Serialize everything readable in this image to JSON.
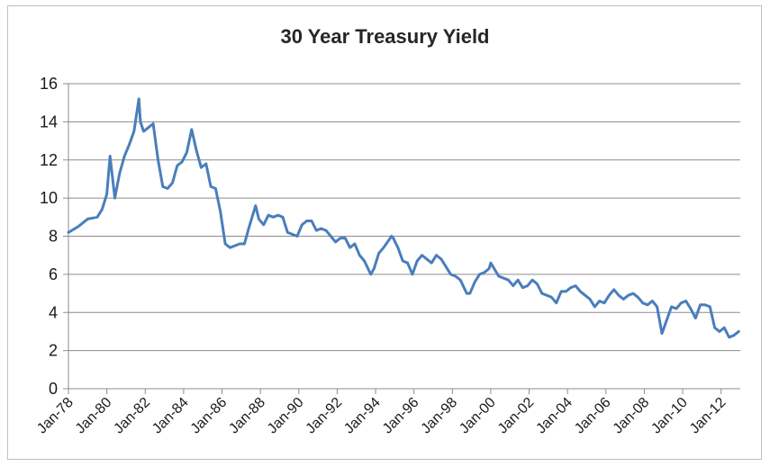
{
  "chart_data": {
    "type": "line",
    "title": "30 Year Treasury Yield",
    "xlabel": "",
    "ylabel": "",
    "ylim": [
      0,
      16
    ],
    "y_ticks": [
      0,
      2,
      4,
      6,
      8,
      10,
      12,
      14,
      16
    ],
    "x_tick_labels": [
      "Jan-78",
      "Jan-80",
      "Jan-82",
      "Jan-84",
      "Jan-86",
      "Jan-88",
      "Jan-90",
      "Jan-92",
      "Jan-94",
      "Jan-96",
      "Jan-98",
      "Jan-00",
      "Jan-02",
      "Jan-04",
      "Jan-06",
      "Jan-08",
      "Jan-10",
      "Jan-12"
    ],
    "grid": "horizontal",
    "legend": "none",
    "series": [
      {
        "color": "#4a7ebb",
        "x": [
          "1978-01",
          "1978-07",
          "1979-01",
          "1979-07",
          "1979-10",
          "1980-01",
          "1980-03",
          "1980-06",
          "1980-09",
          "1980-12",
          "1981-03",
          "1981-06",
          "1981-09",
          "1981-10",
          "1981-12",
          "1982-03",
          "1982-06",
          "1982-09",
          "1982-12",
          "1983-03",
          "1983-06",
          "1983-09",
          "1983-12",
          "1984-03",
          "1984-06",
          "1984-09",
          "1984-12",
          "1985-03",
          "1985-06",
          "1985-09",
          "1985-12",
          "1986-03",
          "1986-06",
          "1986-09",
          "1986-12",
          "1987-03",
          "1987-06",
          "1987-10",
          "1987-12",
          "1988-03",
          "1988-06",
          "1988-09",
          "1988-12",
          "1989-03",
          "1989-06",
          "1989-09",
          "1989-12",
          "1990-03",
          "1990-06",
          "1990-09",
          "1990-12",
          "1991-03",
          "1991-06",
          "1991-09",
          "1991-12",
          "1992-03",
          "1992-06",
          "1992-09",
          "1992-12",
          "1993-03",
          "1993-06",
          "1993-10",
          "1993-12",
          "1994-03",
          "1994-06",
          "1994-11",
          "1994-12",
          "1995-03",
          "1995-06",
          "1995-09",
          "1995-12",
          "1996-03",
          "1996-06",
          "1996-09",
          "1996-12",
          "1997-03",
          "1997-06",
          "1997-09",
          "1997-12",
          "1998-03",
          "1998-06",
          "1998-10",
          "1998-12",
          "1999-03",
          "1999-06",
          "1999-09",
          "1999-12",
          "2000-01",
          "2000-06",
          "2000-12",
          "2001-03",
          "2001-06",
          "2001-09",
          "2001-12",
          "2002-03",
          "2002-06",
          "2002-09",
          "2002-12",
          "2003-03",
          "2003-06",
          "2003-09",
          "2003-12",
          "2004-03",
          "2004-06",
          "2004-09",
          "2004-12",
          "2005-03",
          "2005-06",
          "2005-09",
          "2005-12",
          "2006-03",
          "2006-06",
          "2006-09",
          "2006-12",
          "2007-03",
          "2007-06",
          "2007-09",
          "2007-12",
          "2008-03",
          "2008-06",
          "2008-09",
          "2008-12",
          "2009-03",
          "2009-06",
          "2009-09",
          "2009-12",
          "2010-03",
          "2010-06",
          "2010-09",
          "2010-12",
          "2011-03",
          "2011-06",
          "2011-09",
          "2011-12",
          "2012-03",
          "2012-06",
          "2012-09",
          "2012-12"
        ],
        "values": [
          8.2,
          8.5,
          8.9,
          9.0,
          9.4,
          10.2,
          12.2,
          10.0,
          11.3,
          12.2,
          12.8,
          13.5,
          15.2,
          14.0,
          13.5,
          13.7,
          13.9,
          12.0,
          10.6,
          10.5,
          10.8,
          11.7,
          11.9,
          12.4,
          13.6,
          12.5,
          11.6,
          11.8,
          10.6,
          10.5,
          9.3,
          7.6,
          7.4,
          7.5,
          7.6,
          7.6,
          8.5,
          9.6,
          8.9,
          8.6,
          9.1,
          9.0,
          9.1,
          9.0,
          8.2,
          8.1,
          8.0,
          8.6,
          8.8,
          8.8,
          8.3,
          8.4,
          8.3,
          8.0,
          7.7,
          7.9,
          7.9,
          7.4,
          7.6,
          7.0,
          6.7,
          6.0,
          6.3,
          7.1,
          7.4,
          8.0,
          7.9,
          7.4,
          6.7,
          6.6,
          6.0,
          6.7,
          7.0,
          6.8,
          6.6,
          7.0,
          6.8,
          6.4,
          6.0,
          5.9,
          5.7,
          5.0,
          5.0,
          5.6,
          6.0,
          6.1,
          6.3,
          6.6,
          5.9,
          5.7,
          5.4,
          5.7,
          5.3,
          5.4,
          5.7,
          5.5,
          5.0,
          4.9,
          4.8,
          4.5,
          5.1,
          5.1,
          5.3,
          5.4,
          5.1,
          4.9,
          4.7,
          4.3,
          4.6,
          4.5,
          4.9,
          5.2,
          4.9,
          4.7,
          4.9,
          5.0,
          4.8,
          4.5,
          4.4,
          4.6,
          4.3,
          2.9,
          3.6,
          4.3,
          4.2,
          4.5,
          4.6,
          4.2,
          3.7,
          4.4,
          4.4,
          4.3,
          3.2,
          3.0,
          3.2,
          2.7,
          2.8,
          3.0
        ]
      }
    ]
  }
}
